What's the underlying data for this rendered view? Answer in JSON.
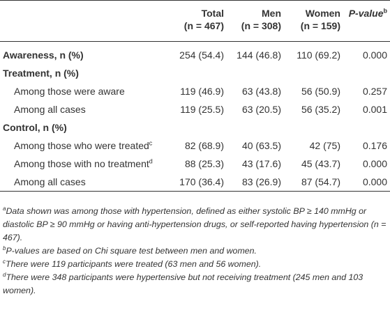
{
  "header": {
    "col_total_name": "Total",
    "col_total_n": "(n = 467)",
    "col_men_name": "Men",
    "col_men_n": "(n = 308)",
    "col_women_name": "Women",
    "col_women_n": "(n = 159)",
    "col_p_name": "P-value",
    "col_p_sup": "b"
  },
  "rows": {
    "awareness": {
      "label": "Awareness, n (%)",
      "total": "254 (54.4)",
      "men": "144 (46.8)",
      "women": "110 (69.2)",
      "p": "0.000"
    },
    "treatment_title": "Treatment, n (%)",
    "treat_aware": {
      "label": "Among those were aware",
      "total": "119 (46.9)",
      "men": "63 (43.8)",
      "women": "56 (50.9)",
      "p": "0.257"
    },
    "treat_all": {
      "label": "Among all cases",
      "total": "119 (25.5)",
      "men": "63 (20.5)",
      "women": "56 (35.2)",
      "p": "0.001"
    },
    "control_title": "Control, n (%)",
    "ctrl_treated": {
      "label": "Among those who were treated",
      "sup": "c",
      "total": "82 (68.9)",
      "men": "40 (63.5)",
      "women": "42 (75)",
      "p": "0.176"
    },
    "ctrl_notreat": {
      "label": "Among those with no treatment",
      "sup": "d",
      "total": "88 (25.3)",
      "men": "43 (17.6)",
      "women": "45 (43.7)",
      "p": "0.000"
    },
    "ctrl_all": {
      "label": "Among all cases",
      "total": "170 (36.4)",
      "men": "83 (26.9)",
      "women": "87 (54.7)",
      "p": "0.000"
    }
  },
  "notes": {
    "a_sup": "a",
    "a_text": "Data shown was among those with hypertension, defined as either systolic BP ≥ 140 mmHg or diastolic BP ≥ 90 mmHg or having anti-hypertension drugs, or self-reported having hypertension (n = 467).",
    "b_sup": "b",
    "b_text": "P-values are based on Chi square test between men and women.",
    "c_sup": "c",
    "c_text": "There were 119 participants were treated (63 men and 56 women).",
    "d_sup": "d",
    "d_text": "There were 348 participants were hypertensive but not receiving treatment (245 men and 103 women)."
  }
}
